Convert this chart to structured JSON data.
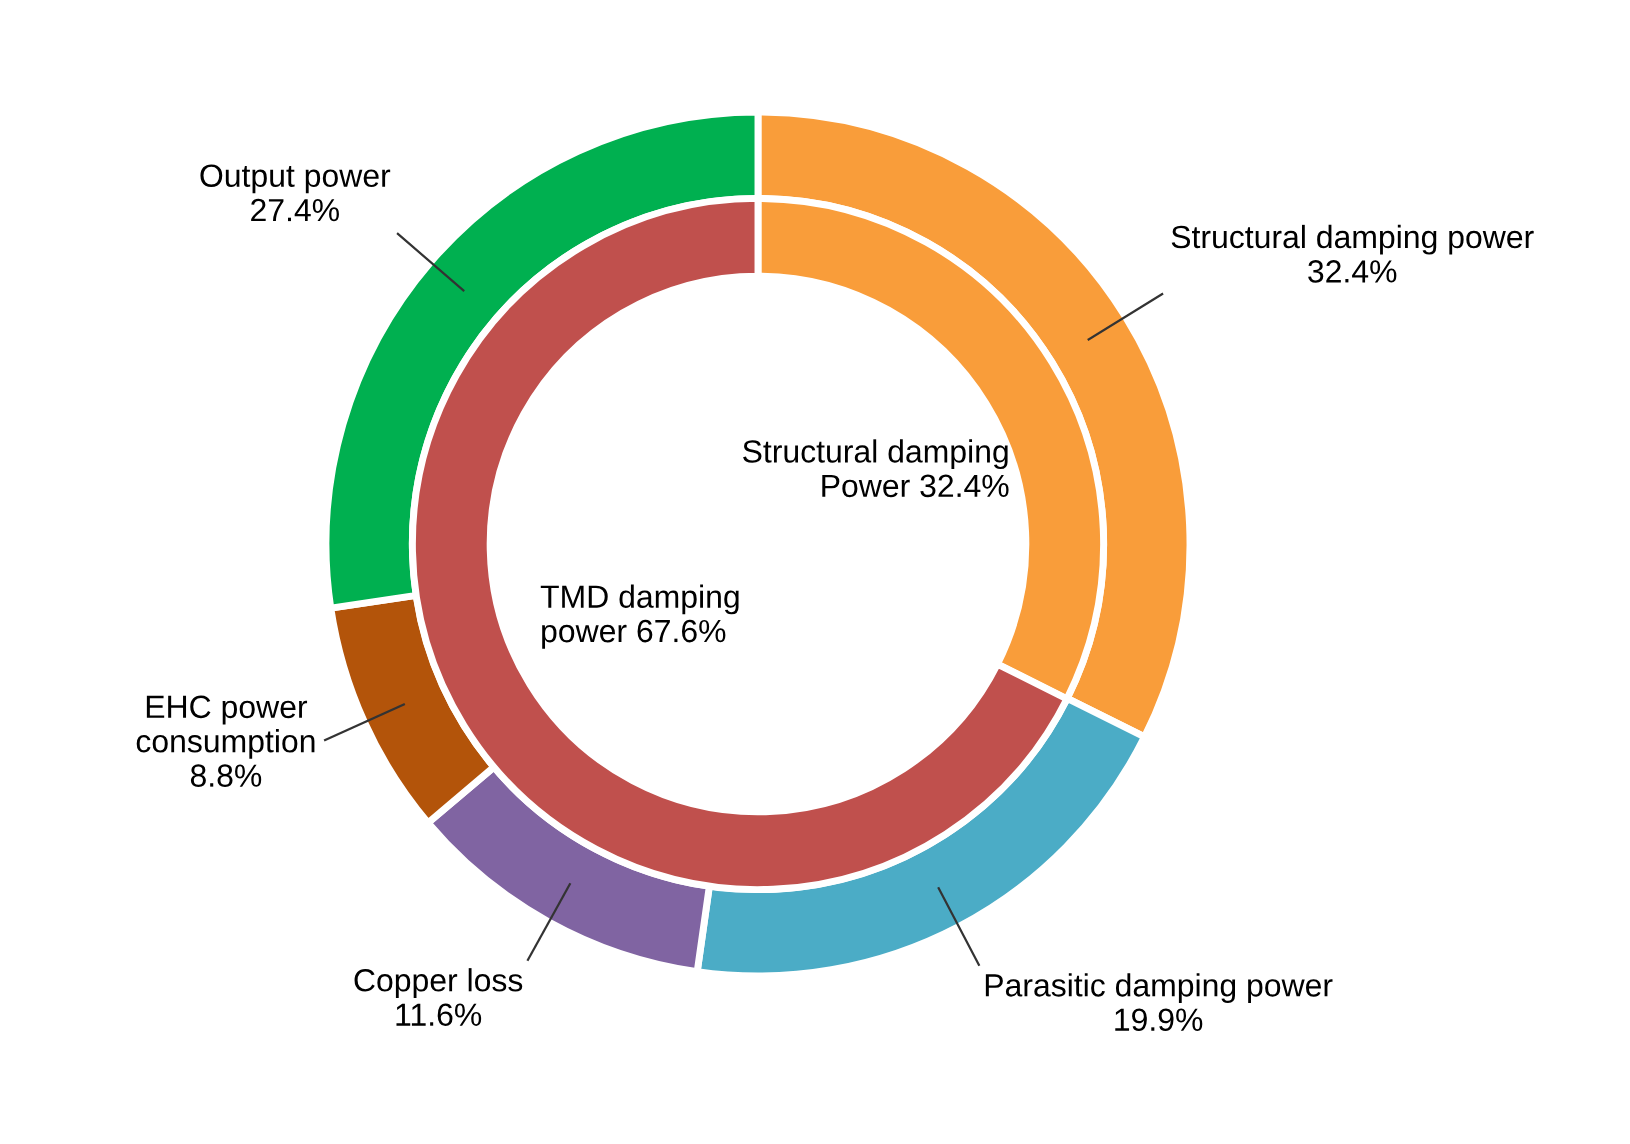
{
  "chart_data": {
    "type": "donut",
    "categories": [
      "Structural damping power",
      "Parasitic damping power",
      "Copper loss",
      "EHC power\nconsumption",
      "Output power",
      "Structural damping\nPower",
      "TMD damping\npower"
    ],
    "colors": [
      "#f99d3a",
      "#4bacc6",
      "#8064a2",
      "#b3540a",
      "#00b050",
      "#f99d3a",
      "#c0504d"
    ],
    "series": [
      {
        "values": [
          32.4,
          19.9,
          11.6,
          8.8,
          27.4,
          null,
          null
        ],
        "value_labels": [
          "32.4%",
          "19.9%",
          "11.6%",
          "8.8%",
          "27.4%",
          null,
          null
        ]
      },
      {
        "values": [
          null,
          null,
          null,
          null,
          null,
          32.4,
          67.6
        ],
        "value_labels": [
          null,
          null,
          null,
          null,
          null,
          "32.4%",
          "67.6%"
        ]
      }
    ]
  }
}
